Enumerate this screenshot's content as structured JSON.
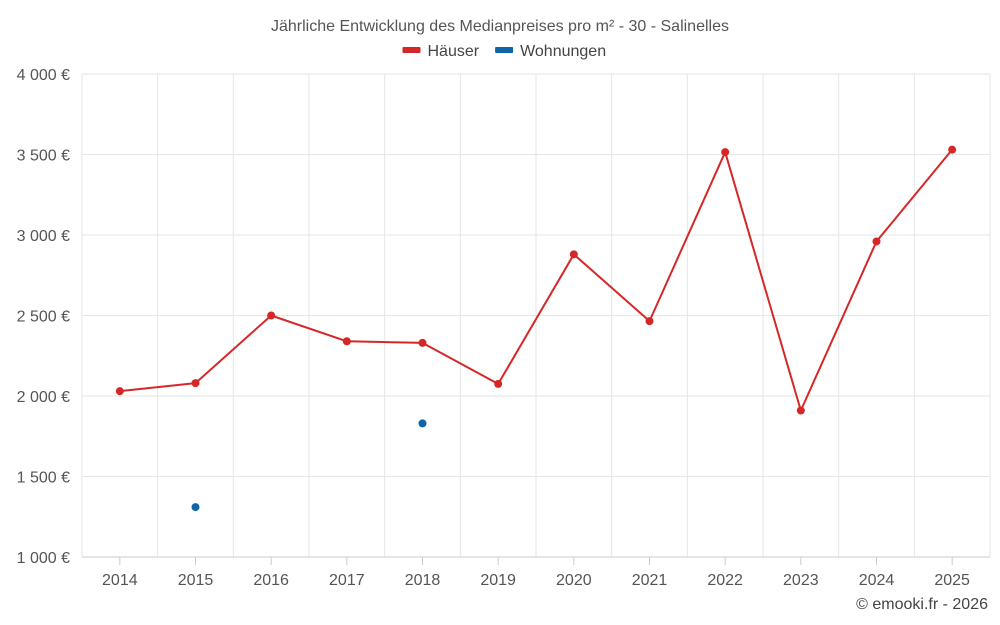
{
  "chart_data": {
    "type": "line",
    "title": "Jährliche Entwicklung des Medianpreises pro m² - 30 - Salinelles",
    "categories": [
      "2014",
      "2015",
      "2016",
      "2017",
      "2018",
      "2019",
      "2020",
      "2021",
      "2022",
      "2023",
      "2024",
      "2025"
    ],
    "series": [
      {
        "name": "Häuser",
        "color": "#d62728",
        "values": [
          2030,
          2080,
          2500,
          2340,
          2330,
          2075,
          2880,
          2465,
          3515,
          1910,
          2960,
          3530
        ]
      },
      {
        "name": "Wohnungen",
        "color": "#0e65a8",
        "values": [
          null,
          1310,
          null,
          null,
          1830,
          null,
          null,
          null,
          null,
          null,
          null,
          null
        ]
      }
    ],
    "ylim": [
      1000,
      4000
    ],
    "yticks": [
      1000,
      1500,
      2000,
      2500,
      3000,
      3500,
      4000
    ],
    "ytick_labels": [
      "1 000 €",
      "1 500 €",
      "2 000 €",
      "2 500 €",
      "3 000 €",
      "3 500 €",
      "4 000 €"
    ],
    "xlabel": "",
    "ylabel": "",
    "grid": true,
    "legend_position": "top-center"
  },
  "credit": "© emooki.fr - 2026"
}
